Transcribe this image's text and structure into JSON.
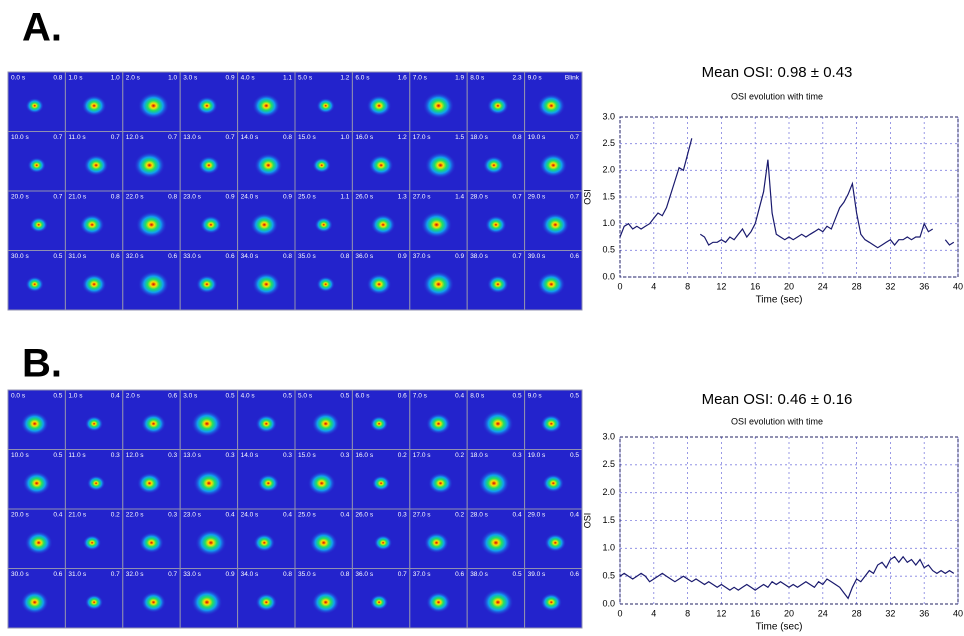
{
  "panels": [
    {
      "label": "A.",
      "tiles": [
        {
          "time": "0.0 s",
          "value": "0.8"
        },
        {
          "time": "1.0 s",
          "value": "1.0"
        },
        {
          "time": "2.0 s",
          "value": "1.0"
        },
        {
          "time": "3.0 s",
          "value": "0.9"
        },
        {
          "time": "4.0 s",
          "value": "1.1"
        },
        {
          "time": "5.0 s",
          "value": "1.2"
        },
        {
          "time": "6.0 s",
          "value": "1.6"
        },
        {
          "time": "7.0 s",
          "value": "1.9"
        },
        {
          "time": "8.0 s",
          "value": "2.3"
        },
        {
          "time": "9.0 s",
          "value": "Blink"
        },
        {
          "time": "10.0 s",
          "value": "0.7"
        },
        {
          "time": "11.0 s",
          "value": "0.7"
        },
        {
          "time": "12.0 s",
          "value": "0.7"
        },
        {
          "time": "13.0 s",
          "value": "0.7"
        },
        {
          "time": "14.0 s",
          "value": "0.8"
        },
        {
          "time": "15.0 s",
          "value": "1.0"
        },
        {
          "time": "16.0 s",
          "value": "1.2"
        },
        {
          "time": "17.0 s",
          "value": "1.5"
        },
        {
          "time": "18.0 s",
          "value": "0.8"
        },
        {
          "time": "19.0 s",
          "value": "0.7"
        },
        {
          "time": "20.0 s",
          "value": "0.7"
        },
        {
          "time": "21.0 s",
          "value": "0.8"
        },
        {
          "time": "22.0 s",
          "value": "0.8"
        },
        {
          "time": "23.0 s",
          "value": "0.9"
        },
        {
          "time": "24.0 s",
          "value": "0.9"
        },
        {
          "time": "25.0 s",
          "value": "1.1"
        },
        {
          "time": "26.0 s",
          "value": "1.3"
        },
        {
          "time": "27.0 s",
          "value": "1.4"
        },
        {
          "time": "28.0 s",
          "value": "0.7"
        },
        {
          "time": "29.0 s",
          "value": "0.7"
        },
        {
          "time": "30.0 s",
          "value": "0.5"
        },
        {
          "time": "31.0 s",
          "value": "0.6"
        },
        {
          "time": "32.0 s",
          "value": "0.6"
        },
        {
          "time": "33.0 s",
          "value": "0.6"
        },
        {
          "time": "34.0 s",
          "value": "0.8"
        },
        {
          "time": "35.0 s",
          "value": "0.8"
        },
        {
          "time": "36.0 s",
          "value": "0.9"
        },
        {
          "time": "37.0 s",
          "value": "0.9"
        },
        {
          "time": "38.0 s",
          "value": "0.7"
        },
        {
          "time": "39.0 s",
          "value": "0.6"
        }
      ]
    },
    {
      "label": "B.",
      "tiles": [
        {
          "time": "0.0 s",
          "value": "0.5"
        },
        {
          "time": "1.0 s",
          "value": "0.4"
        },
        {
          "time": "2.0 s",
          "value": "0.6"
        },
        {
          "time": "3.0 s",
          "value": "0.5"
        },
        {
          "time": "4.0 s",
          "value": "0.5"
        },
        {
          "time": "5.0 s",
          "value": "0.5"
        },
        {
          "time": "6.0 s",
          "value": "0.6"
        },
        {
          "time": "7.0 s",
          "value": "0.4"
        },
        {
          "time": "8.0 s",
          "value": "0.5"
        },
        {
          "time": "9.0 s",
          "value": "0.5"
        },
        {
          "time": "10.0 s",
          "value": "0.5"
        },
        {
          "time": "11.0 s",
          "value": "0.3"
        },
        {
          "time": "12.0 s",
          "value": "0.3"
        },
        {
          "time": "13.0 s",
          "value": "0.3"
        },
        {
          "time": "14.0 s",
          "value": "0.3"
        },
        {
          "time": "15.0 s",
          "value": "0.3"
        },
        {
          "time": "16.0 s",
          "value": "0.2"
        },
        {
          "time": "17.0 s",
          "value": "0.2"
        },
        {
          "time": "18.0 s",
          "value": "0.3"
        },
        {
          "time": "19.0 s",
          "value": "0.5"
        },
        {
          "time": "20.0 s",
          "value": "0.4"
        },
        {
          "time": "21.0 s",
          "value": "0.2"
        },
        {
          "time": "22.0 s",
          "value": "0.3"
        },
        {
          "time": "23.0 s",
          "value": "0.4"
        },
        {
          "time": "24.0 s",
          "value": "0.4"
        },
        {
          "time": "25.0 s",
          "value": "0.4"
        },
        {
          "time": "26.0 s",
          "value": "0.3"
        },
        {
          "time": "27.0 s",
          "value": "0.2"
        },
        {
          "time": "28.0 s",
          "value": "0.4"
        },
        {
          "time": "29.0 s",
          "value": "0.4"
        },
        {
          "time": "30.0 s",
          "value": "0.6"
        },
        {
          "time": "31.0 s",
          "value": "0.7"
        },
        {
          "time": "32.0 s",
          "value": "0.7"
        },
        {
          "time": "33.0 s",
          "value": "0.9"
        },
        {
          "time": "34.0 s",
          "value": "0.8"
        },
        {
          "time": "35.0 s",
          "value": "0.8"
        },
        {
          "time": "36.0 s",
          "value": "0.7"
        },
        {
          "time": "37.0 s",
          "value": "0.6"
        },
        {
          "time": "38.0 s",
          "value": "0.5"
        },
        {
          "time": "39.0 s",
          "value": "0.6"
        }
      ]
    }
  ],
  "chart_data": [
    {
      "type": "line",
      "title": "Mean OSI: 0.98 ± 0.43",
      "subtitle": "OSI evolution with time",
      "x_label": "Time (sec)",
      "y_label": "OSI",
      "grid": true,
      "xlim": [
        0,
        40
      ],
      "xticks": [
        0,
        4,
        8,
        12,
        16,
        20,
        24,
        28,
        32,
        36,
        40
      ],
      "ylim": [
        0,
        3
      ],
      "yticks": [
        {
          "value": 0,
          "label": "0.0"
        },
        0.5,
        {
          "value": 1,
          "label": "1.0"
        },
        1.5,
        {
          "value": 2,
          "label": "2.0"
        },
        2.5,
        {
          "value": 3,
          "label": "3.0"
        }
      ],
      "x": [
        0,
        0.5,
        1,
        1.5,
        2,
        2.5,
        3,
        3.5,
        4,
        4.5,
        5,
        5.5,
        6,
        6.5,
        7,
        7.5,
        8,
        8.5,
        9,
        9.5,
        10,
        10.5,
        11,
        11.5,
        12,
        12.5,
        13,
        13.5,
        14,
        14.5,
        15,
        15.5,
        16,
        16.5,
        17,
        17.5,
        18,
        18.5,
        19,
        19.5,
        20,
        20.5,
        21,
        21.5,
        22,
        22.5,
        23,
        23.5,
        24,
        24.5,
        25,
        25.5,
        26,
        26.5,
        27,
        27.5,
        28,
        28.5,
        29,
        29.5,
        30,
        30.5,
        31,
        31.5,
        32,
        32.5,
        33,
        33.5,
        34,
        34.5,
        35,
        35.5,
        36,
        36.5,
        37,
        37.5,
        38,
        38.5,
        39,
        39.5
      ],
      "series": [
        {
          "name": "OSI",
          "color": "#1a1a6e",
          "values": [
            0.75,
            0.95,
            1.0,
            0.9,
            0.95,
            0.9,
            0.95,
            1.0,
            1.1,
            1.2,
            1.15,
            1.3,
            1.55,
            1.8,
            2.05,
            2.0,
            2.3,
            2.6,
            null,
            0.8,
            0.75,
            0.6,
            0.65,
            0.65,
            0.7,
            0.65,
            0.75,
            0.7,
            0.8,
            0.9,
            0.75,
            0.85,
            1.0,
            1.3,
            1.6,
            2.2,
            1.2,
            0.8,
            0.75,
            0.7,
            0.75,
            0.7,
            0.75,
            0.8,
            0.75,
            0.8,
            0.85,
            0.9,
            0.85,
            0.95,
            0.9,
            1.1,
            1.3,
            1.4,
            1.55,
            1.75,
            1.2,
            0.8,
            0.7,
            0.65,
            0.6,
            0.55,
            0.6,
            0.65,
            0.7,
            0.6,
            0.7,
            0.7,
            0.75,
            0.7,
            0.75,
            0.75,
            1.0,
            0.85,
            0.9,
            null,
            null,
            0.7,
            0.6,
            0.65
          ]
        }
      ]
    },
    {
      "type": "line",
      "title": "Mean OSI: 0.46 ± 0.16",
      "subtitle": "OSI evolution with time",
      "x_label": "Time (sec)",
      "y_label": "OSI",
      "grid": true,
      "xlim": [
        0,
        40
      ],
      "xticks": [
        0,
        4,
        8,
        12,
        16,
        20,
        24,
        28,
        32,
        36,
        40
      ],
      "ylim": [
        0,
        3
      ],
      "yticks": [
        {
          "value": 0,
          "label": "0.0"
        },
        0.5,
        {
          "value": 1,
          "label": "1.0"
        },
        1.5,
        {
          "value": 2,
          "label": "2.0"
        },
        2.5,
        {
          "value": 3,
          "label": "3.0"
        }
      ],
      "x": [
        0,
        0.5,
        1,
        1.5,
        2,
        2.5,
        3,
        3.5,
        4,
        4.5,
        5,
        5.5,
        6,
        6.5,
        7,
        7.5,
        8,
        8.5,
        9,
        9.5,
        10,
        10.5,
        11,
        11.5,
        12,
        12.5,
        13,
        13.5,
        14,
        14.5,
        15,
        15.5,
        16,
        16.5,
        17,
        17.5,
        18,
        18.5,
        19,
        19.5,
        20,
        20.5,
        21,
        21.5,
        22,
        22.5,
        23,
        23.5,
        24,
        24.5,
        25,
        25.5,
        26,
        26.5,
        27,
        27.5,
        28,
        28.5,
        29,
        29.5,
        30,
        30.5,
        31,
        31.5,
        32,
        32.5,
        33,
        33.5,
        34,
        34.5,
        35,
        35.5,
        36,
        36.5,
        37,
        37.5,
        38,
        38.5,
        39,
        39.5
      ],
      "series": [
        {
          "name": "OSI",
          "color": "#1a1a6e",
          "values": [
            0.5,
            0.55,
            0.5,
            0.45,
            0.5,
            0.55,
            0.5,
            0.4,
            0.45,
            0.5,
            0.55,
            0.5,
            0.45,
            0.4,
            0.45,
            0.5,
            0.45,
            0.4,
            0.45,
            0.4,
            0.35,
            0.4,
            0.35,
            0.3,
            0.35,
            0.3,
            0.25,
            0.3,
            0.25,
            0.3,
            0.35,
            0.3,
            0.25,
            0.3,
            0.35,
            0.3,
            0.4,
            0.35,
            0.4,
            0.35,
            0.3,
            0.35,
            0.3,
            0.35,
            0.4,
            0.35,
            0.3,
            0.4,
            0.35,
            0.45,
            0.4,
            0.35,
            0.3,
            0.2,
            0.1,
            0.3,
            0.45,
            0.4,
            0.5,
            0.6,
            0.55,
            0.7,
            0.75,
            0.65,
            0.8,
            0.85,
            0.75,
            0.85,
            0.75,
            0.8,
            0.7,
            0.8,
            0.65,
            0.7,
            0.6,
            0.55,
            0.6,
            0.55,
            0.6,
            0.55
          ]
        }
      ]
    }
  ]
}
